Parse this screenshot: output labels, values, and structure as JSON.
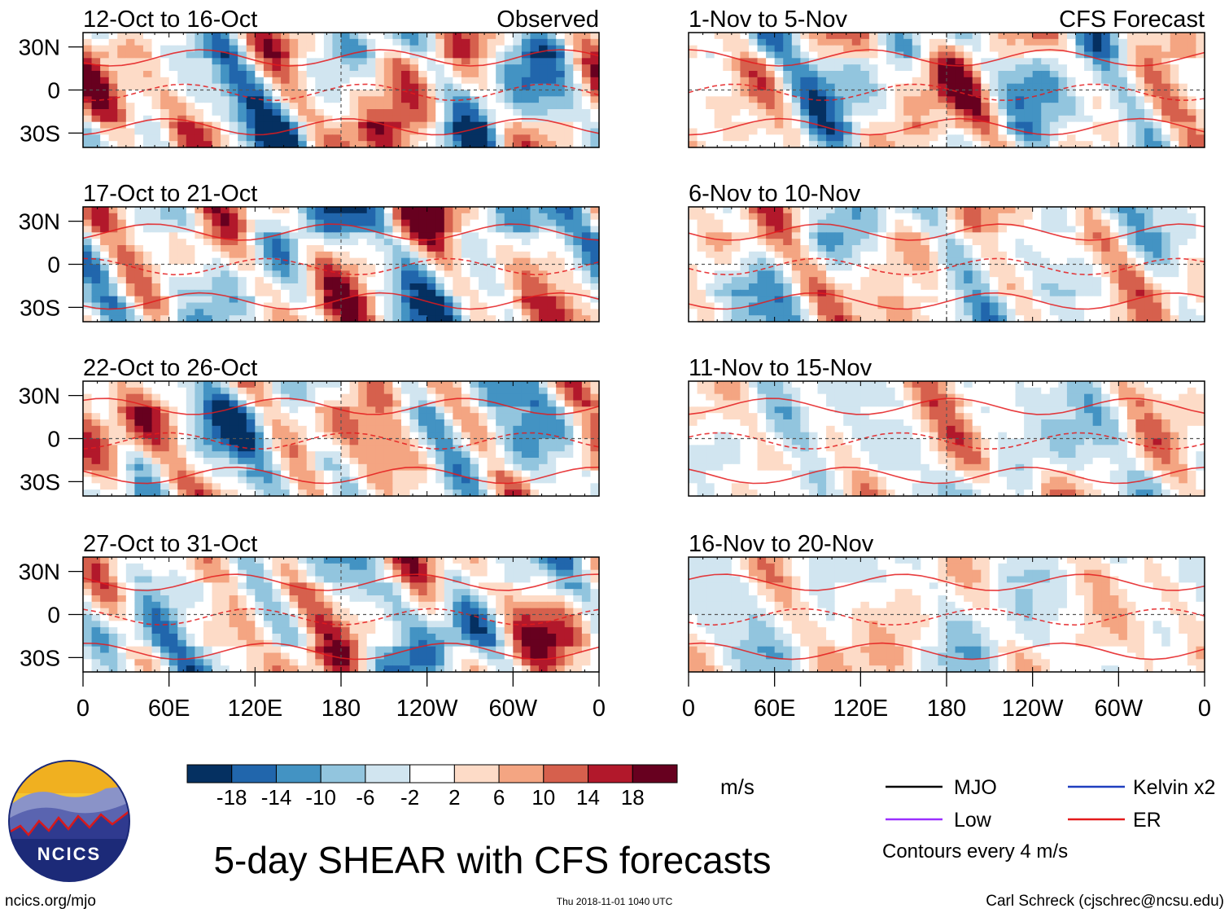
{
  "chart_data": {
    "type": "heatmap",
    "title": "5-day SHEAR with CFS forecasts",
    "units": "m/s",
    "latitude_ticks": [
      "30N",
      "0",
      "30S"
    ],
    "longitude_ticks": [
      "0",
      "60E",
      "120E",
      "180",
      "120W",
      "60W",
      "0"
    ],
    "longitude_values": [
      0,
      60,
      120,
      180,
      240,
      300,
      360
    ],
    "latitude_values": [
      30,
      0,
      -30
    ],
    "lat_range": [
      -40,
      40
    ],
    "lon_range": [
      0,
      360
    ],
    "columns": [
      {
        "label": "Observed",
        "panels": [
          {
            "period": "12-Oct to 16-Oct"
          },
          {
            "period": "17-Oct to 21-Oct"
          },
          {
            "period": "22-Oct to 26-Oct"
          },
          {
            "period": "27-Oct to 31-Oct"
          }
        ]
      },
      {
        "label": "CFS Forecast",
        "panels": [
          {
            "period": "1-Nov to 5-Nov"
          },
          {
            "period": "6-Nov to 10-Nov"
          },
          {
            "period": "11-Nov to 15-Nov"
          },
          {
            "period": "16-Nov to 20-Nov"
          }
        ]
      }
    ],
    "colorbar": {
      "tick_labels": [
        "-18",
        "-14",
        "-10",
        "-6",
        "-2",
        "2",
        "6",
        "10",
        "14",
        "18"
      ],
      "colors": [
        "#053061",
        "#2166ac",
        "#4393c3",
        "#92c5de",
        "#d1e5f0",
        "#ffffff",
        "#fddbc7",
        "#f4a582",
        "#d6604d",
        "#b2182b",
        "#67001f"
      ]
    },
    "legend": [
      {
        "label": "MJO",
        "color": "#000000"
      },
      {
        "label": "Kelvin x2",
        "color": "#1f3fbf"
      },
      {
        "label": "Low",
        "color": "#9b30ff"
      },
      {
        "label": "ER",
        "color": "#e41a1c"
      }
    ],
    "contour_note": "Contours every 4 m/s"
  },
  "branding": {
    "logo_text": "NCICS",
    "url": "ncics.org/mjo",
    "timestamp": "Thu 2018-11-01 1040 UTC",
    "credit": "Carl Schreck (cjschrec@ncsu.edu)"
  }
}
